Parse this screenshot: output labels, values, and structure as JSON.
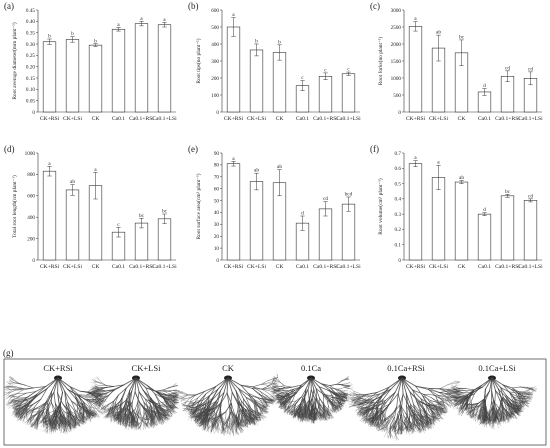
{
  "chart_data": [
    {
      "type": "bar",
      "panel": "(a)",
      "ylabel": "Root average diameter(mm plant⁻¹)",
      "categories": [
        "CK+RSi",
        "CK+LSi",
        "CK",
        "Ca0.1",
        "Ca0.1+RSi",
        "Ca0.1+LSi"
      ],
      "values": [
        0.31,
        0.32,
        0.295,
        0.365,
        0.39,
        0.385
      ],
      "errors": [
        0.012,
        0.012,
        0.006,
        0.008,
        0.01,
        0.01
      ],
      "letters": [
        "b",
        "b",
        "b",
        "a",
        "a",
        "a"
      ],
      "ylim": [
        0,
        0.45
      ],
      "yticks": [
        "0",
        "0.05",
        "0.10",
        "0.15",
        "0.20",
        "0.25",
        "0.30",
        "0.35",
        "0.40",
        "0.45"
      ]
    },
    {
      "type": "bar",
      "panel": "(b)",
      "ylabel": "Root tips(no plant⁻¹)",
      "categories": [
        "CK+RSi",
        "CK+LSi",
        "CK",
        "Ca0.1",
        "Ca0.1+RSi",
        "Ca0.1+LSi"
      ],
      "values": [
        500,
        365,
        350,
        155,
        210,
        225
      ],
      "errors": [
        55,
        35,
        45,
        30,
        20,
        10
      ],
      "letters": [
        "a",
        "b",
        "b",
        "c",
        "c",
        "c"
      ],
      "ylim": [
        0,
        600
      ],
      "yticks": [
        "0",
        "100",
        "200",
        "300",
        "400",
        "500",
        "600"
      ]
    },
    {
      "type": "bar",
      "panel": "(c)",
      "ylabel": "Root forks(no plant⁻¹)",
      "categories": [
        "CK+RSi",
        "CK+LSi",
        "CK",
        "Ca0.1",
        "Ca0.1+RSi",
        "Ca0.1+LSi"
      ],
      "values": [
        2520,
        1880,
        1740,
        590,
        1050,
        990
      ],
      "errors": [
        140,
        380,
        380,
        100,
        160,
        190
      ],
      "letters": [
        "a",
        "ab",
        "bc",
        "d",
        "cd",
        "cd"
      ],
      "ylim": [
        0,
        3000
      ],
      "yticks": [
        "0",
        "500",
        "1000",
        "1500",
        "2000",
        "2500",
        "3000"
      ]
    },
    {
      "type": "bar",
      "panel": "(d)",
      "ylabel": "Total root length(cm plant⁻¹)",
      "categories": [
        "CK+RSi",
        "CK+LSi",
        "CK",
        "Ca0.1",
        "Ca0.1+RSi",
        "Ca0.1+LSi"
      ],
      "values": [
        830,
        655,
        695,
        260,
        345,
        385
      ],
      "errors": [
        45,
        50,
        125,
        45,
        45,
        45
      ],
      "letters": [
        "a",
        "ab",
        "a",
        "c",
        "bc",
        "bc"
      ],
      "ylim": [
        0,
        1000
      ],
      "yticks": [
        "0",
        "200",
        "400",
        "600",
        "800",
        "1000"
      ]
    },
    {
      "type": "bar",
      "panel": "(e)",
      "ylabel": "Root surface area(cm² plant⁻¹)",
      "categories": [
        "CK+RSi",
        "CK+LSi",
        "CK",
        "Ca0.1",
        "Ca0.1+RSi",
        "Ca0.1+LSi"
      ],
      "values": [
        81,
        66,
        65,
        31,
        43,
        47
      ],
      "errors": [
        2,
        7,
        11,
        6,
        6,
        6
      ],
      "letters": [
        "a",
        "ab",
        "ab",
        "d",
        "cd",
        "bcd"
      ],
      "ylim": [
        0,
        90
      ],
      "yticks": [
        "0",
        "10",
        "20",
        "30",
        "40",
        "50",
        "60",
        "70",
        "80",
        "90"
      ]
    },
    {
      "type": "bar",
      "panel": "(f)",
      "ylabel": "Root volume(cm³ plant⁻¹)",
      "categories": [
        "CK+RSi",
        "CK+LSi",
        "CK",
        "Ca0.1",
        "Ca0.1+RSi",
        "Ca0.1+LSi"
      ],
      "values": [
        0.63,
        0.54,
        0.51,
        0.3,
        0.42,
        0.39
      ],
      "errors": [
        0.02,
        0.08,
        0.01,
        0.01,
        0.01,
        0.01
      ],
      "letters": [
        "a",
        "a",
        "ab",
        "d",
        "bc",
        "cd"
      ],
      "ylim": [
        0,
        0.7
      ],
      "yticks": [
        "0",
        "0.1",
        "0.2",
        "0.3",
        "0.4",
        "0.5",
        "0.6",
        "0.7"
      ]
    }
  ],
  "roots_panel": {
    "tag": "(g)",
    "labels": [
      "CK+RSi",
      "CK+LSi",
      "CK",
      "0.1Ca",
      "0.1Ca+RSi",
      "0.1Ca+LSi"
    ]
  }
}
